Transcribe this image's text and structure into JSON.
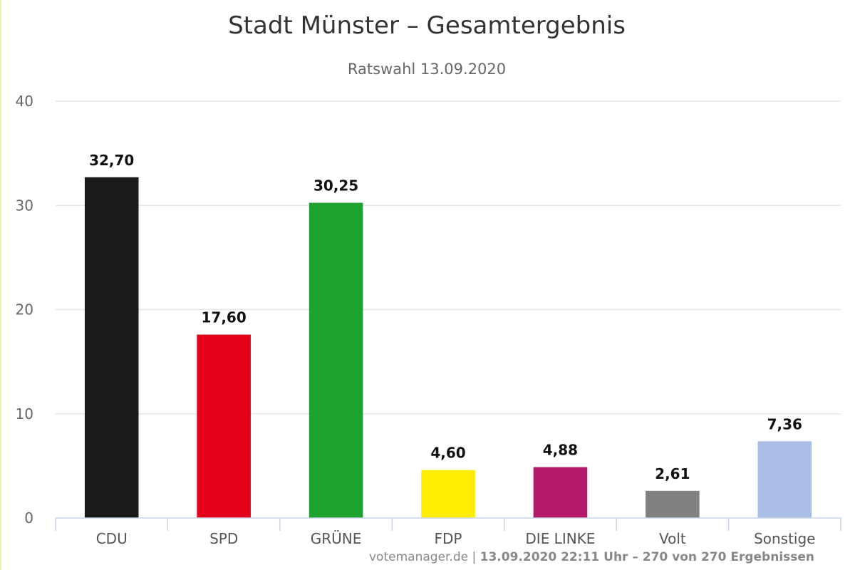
{
  "chart_data": {
    "type": "bar",
    "title": "Stadt Münster – Gesamtergebnis",
    "subtitle": "Ratswahl 13.09.2020",
    "categories": [
      "CDU",
      "SPD",
      "GRÜNE",
      "FDP",
      "DIE LINKE",
      "Volt",
      "Sonstige"
    ],
    "values": [
      32.7,
      17.6,
      30.25,
      4.6,
      4.88,
      2.61,
      7.36
    ],
    "data_labels": [
      "32,70",
      "17,60",
      "30,25",
      "4,60",
      "4,88",
      "2,61",
      "7,36"
    ],
    "colors": [
      "#1a1a1a",
      "#e2001a",
      "#1fa12e",
      "#ffed00",
      "#b31b6a",
      "#808080",
      "#aabde4"
    ],
    "ylim": [
      0,
      40
    ],
    "yticks": [
      0,
      10,
      20,
      30,
      40
    ],
    "grid": true,
    "legend": "none"
  },
  "credits": {
    "site": "votemanager.de",
    "separator": " | ",
    "info": "13.09.2020 22:11 Uhr – 270 von 270 Ergebnissen"
  }
}
